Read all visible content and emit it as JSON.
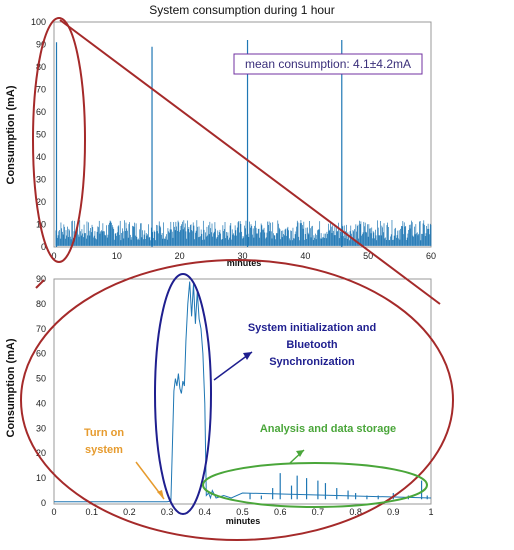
{
  "chart_data": [
    {
      "type": "line",
      "title": "System consumption during 1 hour",
      "xlabel": "minutes",
      "ylabel": "Consumption (mA)",
      "xlim": [
        0,
        60
      ],
      "ylim": [
        0,
        100
      ],
      "xticks": [
        0,
        10,
        20,
        30,
        40,
        50,
        60
      ],
      "yticks": [
        0,
        10,
        20,
        30,
        40,
        50,
        60,
        70,
        80,
        90,
        100
      ],
      "grid": false,
      "baseline_noise_range_mA": [
        3,
        12
      ],
      "spikes": [
        {
          "x": 0.4,
          "y": 91
        },
        {
          "x": 15.6,
          "y": 89
        },
        {
          "x": 30.8,
          "y": 92
        },
        {
          "x": 45.8,
          "y": 92
        }
      ],
      "annotations": {
        "mean_box": "mean consumption: 4.1±4.2mA"
      },
      "colors": {
        "series": "#1f77b4",
        "annotation_box": "#7030a0",
        "callout": "#a52a2a"
      }
    },
    {
      "type": "line",
      "xlabel": "minutes",
      "ylabel": "Consumption (mA)",
      "xlim": [
        0,
        1
      ],
      "ylim": [
        0,
        90
      ],
      "xticks": [
        0,
        0.1,
        0.2,
        0.3,
        0.4,
        0.5,
        0.6,
        0.7,
        0.8,
        0.9,
        1
      ],
      "yticks": [
        0,
        10,
        20,
        30,
        40,
        50,
        60,
        70,
        80,
        90
      ],
      "grid": false,
      "series_points": [
        {
          "x": 0,
          "y": 0.5
        },
        {
          "x": 0.3,
          "y": 0.5
        },
        {
          "x": 0.31,
          "y": 0.8
        },
        {
          "x": 0.318,
          "y": 45
        },
        {
          "x": 0.322,
          "y": 50
        },
        {
          "x": 0.326,
          "y": 47
        },
        {
          "x": 0.33,
          "y": 52
        },
        {
          "x": 0.334,
          "y": 46
        },
        {
          "x": 0.338,
          "y": 44
        },
        {
          "x": 0.342,
          "y": 49
        },
        {
          "x": 0.346,
          "y": 47
        },
        {
          "x": 0.35,
          "y": 65
        },
        {
          "x": 0.355,
          "y": 80
        },
        {
          "x": 0.36,
          "y": 89
        },
        {
          "x": 0.365,
          "y": 75
        },
        {
          "x": 0.37,
          "y": 88
        },
        {
          "x": 0.375,
          "y": 72
        },
        {
          "x": 0.38,
          "y": 85
        },
        {
          "x": 0.385,
          "y": 74
        },
        {
          "x": 0.39,
          "y": 70
        },
        {
          "x": 0.395,
          "y": 60
        },
        {
          "x": 0.4,
          "y": 40
        },
        {
          "x": 0.404,
          "y": 3
        },
        {
          "x": 0.41,
          "y": 4
        },
        {
          "x": 0.415,
          "y": 2
        },
        {
          "x": 0.42,
          "y": 5
        },
        {
          "x": 0.43,
          "y": 2
        },
        {
          "x": 0.45,
          "y": 3
        },
        {
          "x": 0.47,
          "y": 2
        },
        {
          "x": 0.5,
          "y": 4
        }
      ],
      "periodic_spikes": [
        {
          "x": 0.52,
          "y": 4
        },
        {
          "x": 0.55,
          "y": 3
        },
        {
          "x": 0.58,
          "y": 6
        },
        {
          "x": 0.6,
          "y": 12
        },
        {
          "x": 0.63,
          "y": 7
        },
        {
          "x": 0.645,
          "y": 11
        },
        {
          "x": 0.67,
          "y": 10
        },
        {
          "x": 0.7,
          "y": 9
        },
        {
          "x": 0.72,
          "y": 8
        },
        {
          "x": 0.75,
          "y": 6
        },
        {
          "x": 0.78,
          "y": 5
        },
        {
          "x": 0.8,
          "y": 4
        },
        {
          "x": 0.83,
          "y": 3
        },
        {
          "x": 0.86,
          "y": 3
        },
        {
          "x": 0.9,
          "y": 4
        },
        {
          "x": 0.94,
          "y": 3
        },
        {
          "x": 0.975,
          "y": 9
        },
        {
          "x": 0.99,
          "y": 3
        }
      ],
      "annotations": {
        "turn_on": [
          "Turn on",
          "system"
        ],
        "init": [
          "System initialization and",
          "Bluetooth",
          "Synchronization"
        ],
        "analysis": "Analysis and data storage"
      },
      "colors": {
        "series": "#1f77b4",
        "turn_on": "#e69b2e",
        "init": "#1f1f8f",
        "analysis": "#4aa63a",
        "callout": "#a52a2a"
      }
    }
  ]
}
